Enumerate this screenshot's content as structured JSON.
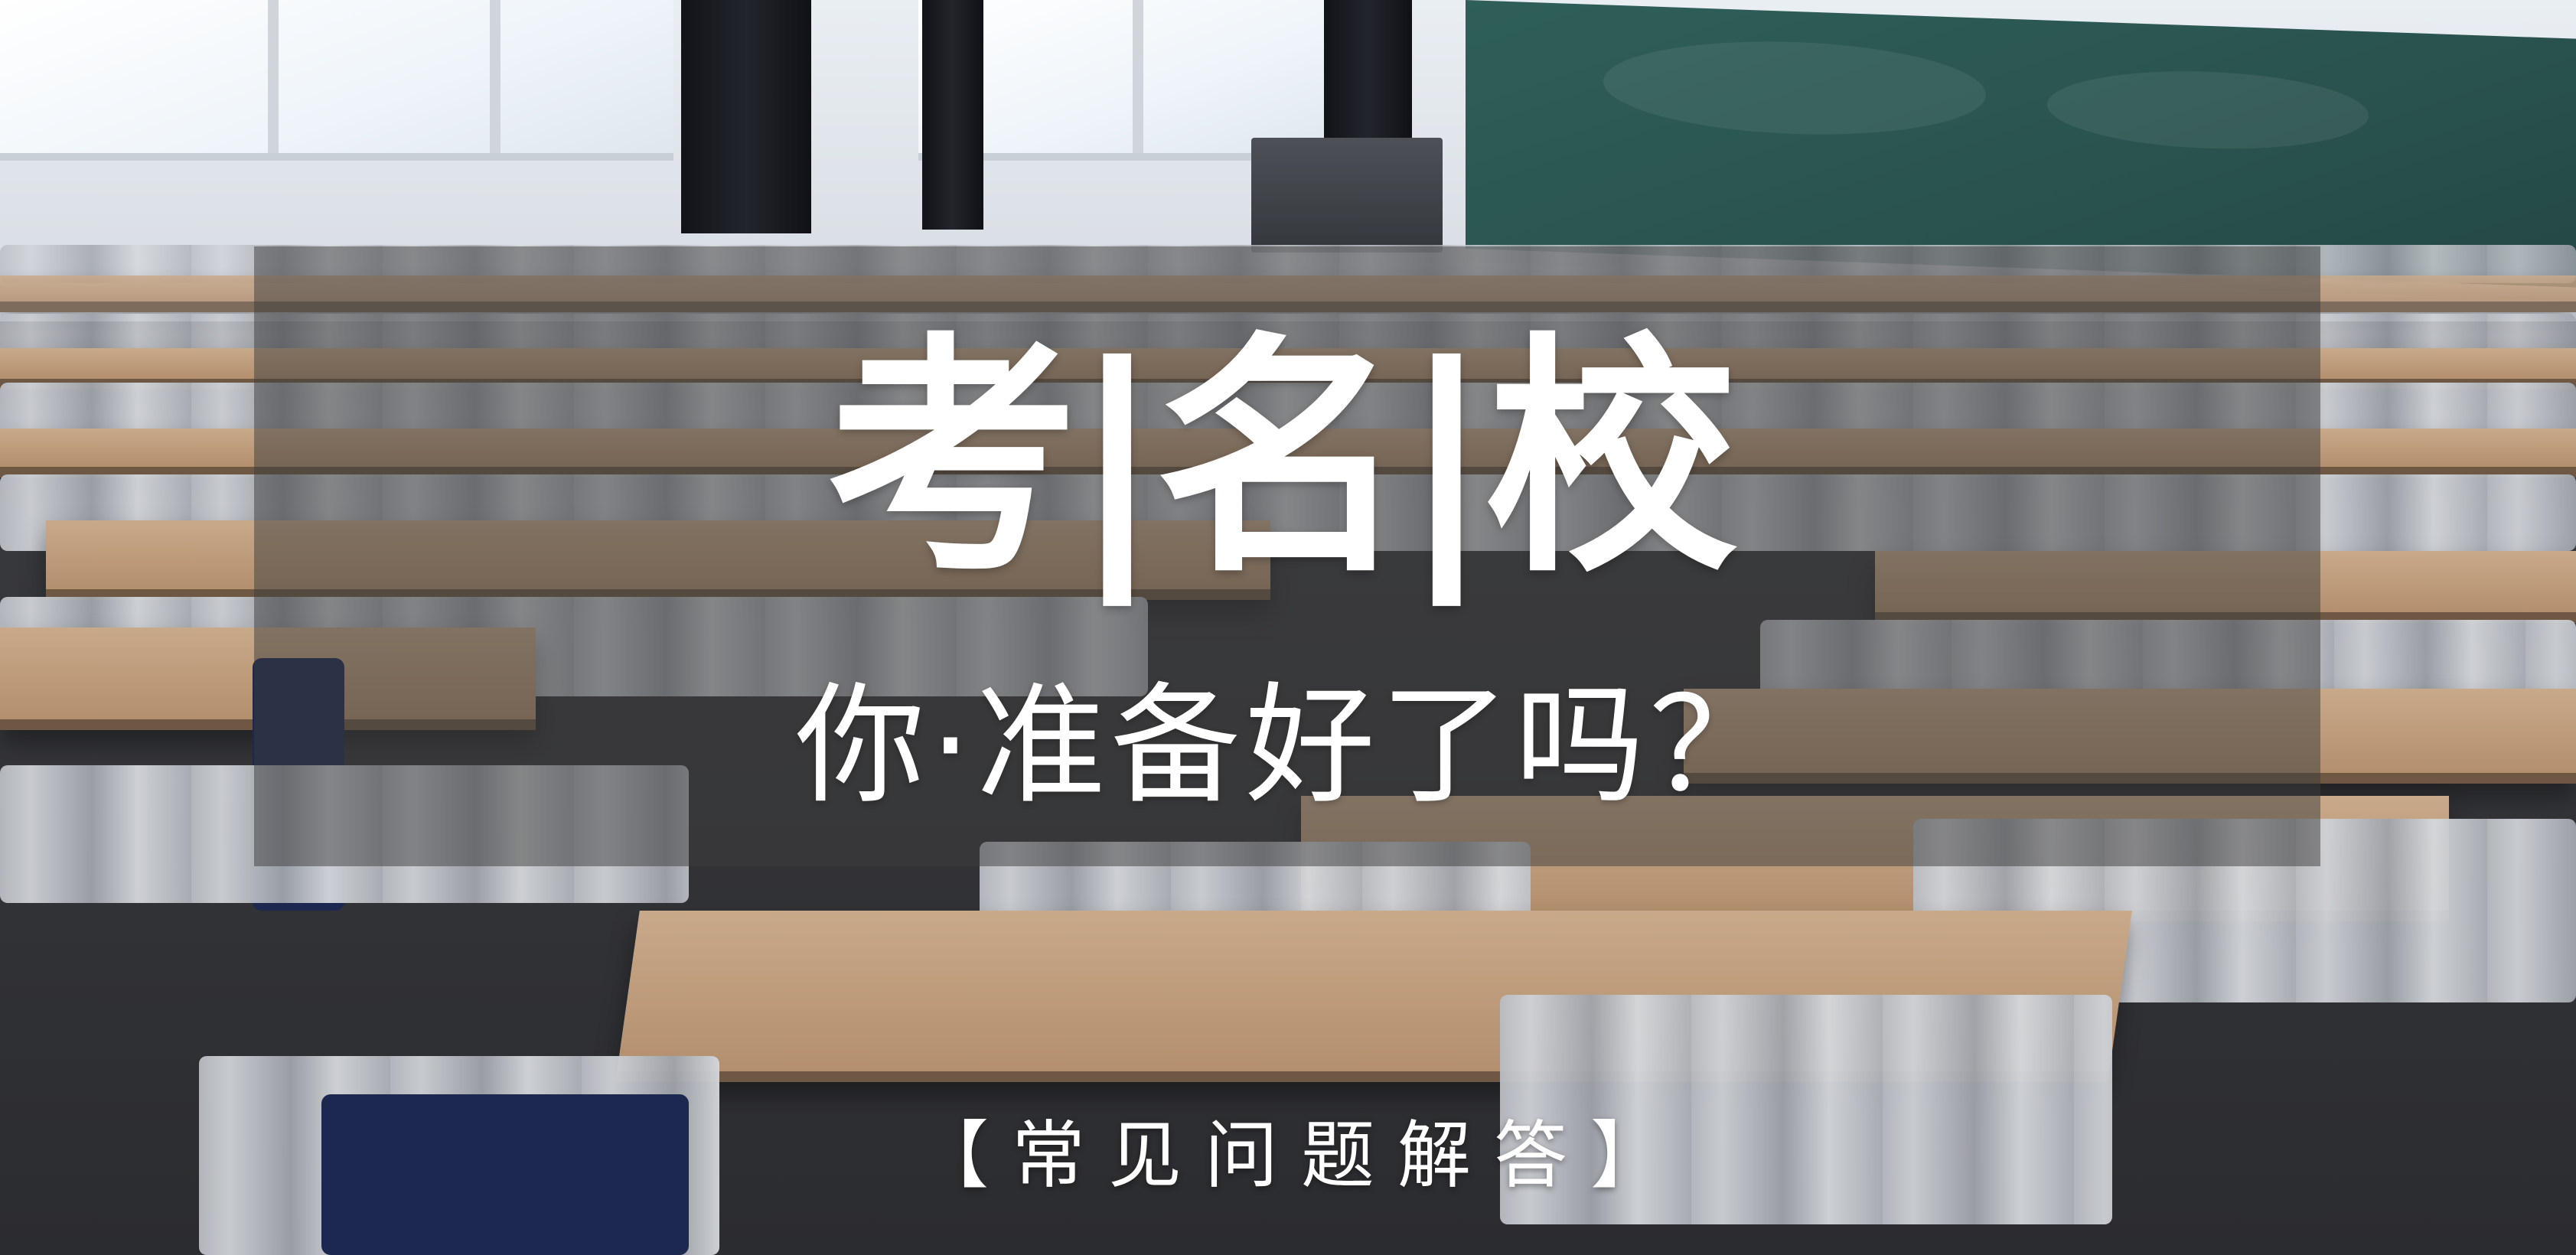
{
  "banner": {
    "title": "考|名|校",
    "subtitle": "你·准备好了吗？",
    "faq_label": "【常见问题解答】"
  },
  "scene": {
    "description_icon": "classroom-photo",
    "panel_color": "#3c3c3c",
    "desk_color": "#c8a98a",
    "blackboard_color": "#2f5f59"
  }
}
